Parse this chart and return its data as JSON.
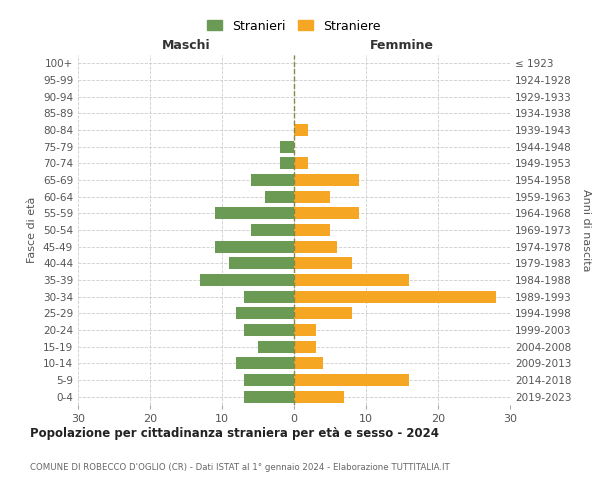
{
  "age_groups": [
    "0-4",
    "5-9",
    "10-14",
    "15-19",
    "20-24",
    "25-29",
    "30-34",
    "35-39",
    "40-44",
    "45-49",
    "50-54",
    "55-59",
    "60-64",
    "65-69",
    "70-74",
    "75-79",
    "80-84",
    "85-89",
    "90-94",
    "95-99",
    "100+"
  ],
  "birth_years": [
    "2019-2023",
    "2014-2018",
    "2009-2013",
    "2004-2008",
    "1999-2003",
    "1994-1998",
    "1989-1993",
    "1984-1988",
    "1979-1983",
    "1974-1978",
    "1969-1973",
    "1964-1968",
    "1959-1963",
    "1954-1958",
    "1949-1953",
    "1944-1948",
    "1939-1943",
    "1934-1938",
    "1929-1933",
    "1924-1928",
    "≤ 1923"
  ],
  "males": [
    7,
    7,
    8,
    5,
    7,
    8,
    7,
    13,
    9,
    11,
    6,
    11,
    4,
    6,
    2,
    2,
    0,
    0,
    0,
    0,
    0
  ],
  "females": [
    7,
    16,
    4,
    3,
    3,
    8,
    28,
    16,
    8,
    6,
    5,
    9,
    5,
    9,
    2,
    0,
    2,
    0,
    0,
    0,
    0
  ],
  "male_color": "#6a9a54",
  "female_color": "#f5a623",
  "male_label": "Stranieri",
  "female_label": "Straniere",
  "title": "Popolazione per cittadinanza straniera per età e sesso - 2024",
  "subtitle": "COMUNE DI ROBECCO D'OGLIO (CR) - Dati ISTAT al 1° gennaio 2024 - Elaborazione TUTTITALIA.IT",
  "xlabel_left": "Maschi",
  "xlabel_right": "Femmine",
  "ylabel_left": "Fasce di età",
  "ylabel_right": "Anni di nascita",
  "xlim": 30,
  "background_color": "#ffffff",
  "grid_color": "#cccccc"
}
